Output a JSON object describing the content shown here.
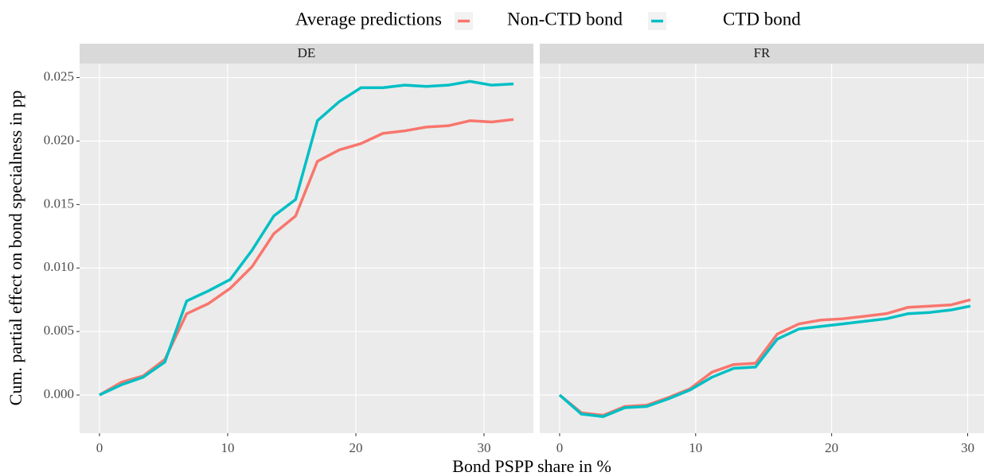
{
  "chart_data": {
    "type": "line",
    "legend_title": "Average predictions",
    "legend_position": "top",
    "xlabel": "Bond PSPP share in %",
    "ylabel": "Cum. partial effect on bond specialness in pp",
    "grid": true,
    "ylim": [
      -0.003,
      0.0261
    ],
    "yticks": [
      {
        "value": 0,
        "label": "0.000"
      },
      {
        "value": 0.005,
        "label": "0.005"
      },
      {
        "value": 0.01,
        "label": "0.010"
      },
      {
        "value": 0.015,
        "label": "0.015"
      },
      {
        "value": 0.02,
        "label": "0.020"
      },
      {
        "value": 0.025,
        "label": "0.025"
      }
    ],
    "facets": [
      {
        "title": "DE",
        "xlim": [
          -1.55,
          33.85
        ],
        "xticks": [
          0,
          10,
          20,
          30
        ],
        "x": [
          0,
          1.7,
          3.4,
          5.1,
          6.8,
          8.5,
          10.2,
          11.9,
          13.6,
          15.3,
          17.0,
          18.7,
          20.4,
          22.1,
          23.8,
          25.5,
          27.2,
          28.9,
          30.6,
          32.3
        ],
        "series": [
          {
            "name": "Non-CTD bond",
            "color": "#F8766D",
            "values": [
              0,
              0.001,
              0.0015,
              0.0028,
              0.0064,
              0.0072,
              0.0084,
              0.0101,
              0.0127,
              0.0141,
              0.0184,
              0.0193,
              0.0198,
              0.0206,
              0.0208,
              0.0211,
              0.0212,
              0.0216,
              0.0215,
              0.0217
            ]
          },
          {
            "name": "CTD bond",
            "color": "#00BFC4",
            "values": [
              0,
              0.0008,
              0.0014,
              0.0026,
              0.0074,
              0.0082,
              0.0091,
              0.0114,
              0.0141,
              0.0154,
              0.0216,
              0.0231,
              0.0242,
              0.0242,
              0.0244,
              0.0243,
              0.0244,
              0.0247,
              0.0244,
              0.0245
            ]
          }
        ]
      },
      {
        "title": "FR",
        "xlim": [
          -1.46,
          31.2
        ],
        "xticks": [
          0,
          10,
          20,
          30
        ],
        "x": [
          0,
          1.6,
          3.2,
          4.8,
          6.4,
          8.0,
          9.6,
          11.2,
          12.8,
          14.4,
          16.0,
          17.6,
          19.2,
          20.8,
          22.4,
          24.0,
          25.6,
          27.2,
          28.8,
          30.2
        ],
        "series": [
          {
            "name": "Non-CTD bond",
            "color": "#F8766D",
            "values": [
              0,
              -0.0014,
              -0.0016,
              -0.0009,
              -0.0008,
              -0.0002,
              0.0005,
              0.0018,
              0.0024,
              0.0025,
              0.0048,
              0.0056,
              0.0059,
              0.006,
              0.0062,
              0.0064,
              0.0069,
              0.007,
              0.0071,
              0.0075
            ]
          },
          {
            "name": "CTD bond",
            "color": "#00BFC4",
            "values": [
              0,
              -0.0015,
              -0.0017,
              -0.001,
              -0.0009,
              -0.0003,
              0.0004,
              0.0014,
              0.0021,
              0.0022,
              0.0044,
              0.0052,
              0.0054,
              0.0056,
              0.0058,
              0.006,
              0.0064,
              0.0065,
              0.0067,
              0.007
            ]
          }
        ]
      }
    ]
  }
}
